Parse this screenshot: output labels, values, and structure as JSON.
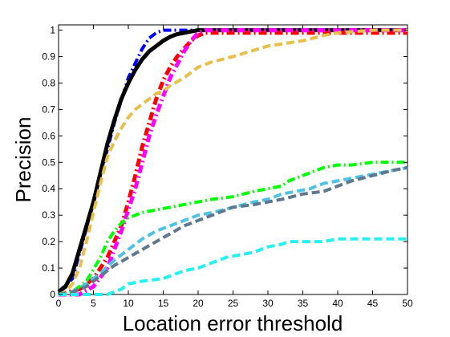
{
  "chart_data": {
    "type": "line",
    "title": "",
    "xlabel": "Location error threshold",
    "ylabel": "Precision",
    "xlim": [
      0,
      50
    ],
    "ylim": [
      0,
      1.02
    ],
    "grid": false,
    "legend": "none",
    "xticks": [
      0,
      5,
      10,
      15,
      20,
      25,
      30,
      35,
      40,
      45,
      50
    ],
    "yticks": [
      0,
      0.1,
      0.2,
      0.3,
      0.4,
      0.5,
      0.6,
      0.7,
      0.8,
      0.9,
      1
    ],
    "ytick_labels": [
      "0",
      "0.1",
      "0.2",
      "0.3",
      "0.4",
      "0.5",
      "0.6",
      "0.7",
      "0.8",
      "0.9",
      "1"
    ],
    "series": [
      {
        "color": "#0000ff",
        "style": "dashdot",
        "width": 4,
        "x": [
          0,
          2,
          4,
          6,
          8,
          10,
          12,
          13,
          14,
          15,
          16,
          17,
          18,
          20,
          50
        ],
        "y": [
          0.01,
          0.06,
          0.25,
          0.45,
          0.65,
          0.82,
          0.93,
          0.97,
          0.99,
          1.0,
          1.0,
          1.0,
          1.0,
          1.0,
          1.0
        ]
      },
      {
        "color": "#000000",
        "style": "solid",
        "width": 5,
        "x": [
          0,
          1,
          2,
          3,
          4,
          5,
          6,
          7,
          8,
          9,
          10,
          11,
          12,
          13,
          14,
          15,
          16,
          17,
          18,
          19,
          20,
          22,
          25,
          30,
          40,
          50
        ],
        "y": [
          0.01,
          0.03,
          0.08,
          0.17,
          0.26,
          0.35,
          0.46,
          0.57,
          0.66,
          0.74,
          0.8,
          0.85,
          0.89,
          0.92,
          0.94,
          0.96,
          0.975,
          0.985,
          0.99,
          0.995,
          1.0,
          1.0,
          1.0,
          1.0,
          1.0,
          1.0
        ]
      },
      {
        "color": "#ff0000",
        "style": "dashdot",
        "width": 5,
        "x": [
          0,
          3,
          5,
          7,
          9,
          10,
          11,
          12,
          13,
          14,
          15,
          16,
          17,
          18,
          19,
          20,
          21,
          22,
          25,
          30,
          40,
          50
        ],
        "y": [
          0,
          0.02,
          0.06,
          0.14,
          0.26,
          0.35,
          0.45,
          0.56,
          0.65,
          0.74,
          0.81,
          0.86,
          0.9,
          0.93,
          0.96,
          0.98,
          0.99,
          0.99,
          0.99,
          0.99,
          0.99,
          0.99
        ]
      },
      {
        "color": "#ff00ff",
        "style": "dashdot",
        "width": 5,
        "x": [
          0,
          3,
          5,
          7,
          9,
          11,
          12,
          13,
          14,
          15,
          16,
          17,
          18,
          19,
          20,
          21,
          22,
          25,
          50
        ],
        "y": [
          0,
          0.0,
          0.03,
          0.1,
          0.24,
          0.4,
          0.5,
          0.6,
          0.68,
          0.75,
          0.82,
          0.87,
          0.92,
          0.96,
          0.99,
          1.0,
          1.0,
          1.0,
          1.0
        ]
      },
      {
        "color": "#e6c04a",
        "style": "dashed",
        "width": 4,
        "x": [
          0,
          1,
          2,
          3,
          4,
          5,
          6,
          7,
          8,
          9,
          10,
          11,
          12,
          13,
          14,
          15,
          16,
          18,
          20,
          22,
          25,
          30,
          35,
          38,
          40,
          45,
          50
        ],
        "y": [
          0,
          0.01,
          0.04,
          0.1,
          0.2,
          0.31,
          0.42,
          0.52,
          0.58,
          0.63,
          0.67,
          0.7,
          0.72,
          0.74,
          0.76,
          0.77,
          0.79,
          0.82,
          0.86,
          0.88,
          0.9,
          0.94,
          0.96,
          0.98,
          0.99,
          1.0,
          1.0
        ]
      },
      {
        "color": "#00ff00",
        "style": "dashdot",
        "width": 4,
        "x": [
          0,
          2,
          4,
          6,
          7,
          8,
          9,
          10,
          11,
          12,
          14,
          16,
          18,
          20,
          22,
          25,
          28,
          30,
          32,
          33,
          35,
          38,
          40,
          42,
          45,
          48,
          50
        ],
        "y": [
          0,
          0.01,
          0.05,
          0.14,
          0.2,
          0.24,
          0.27,
          0.29,
          0.3,
          0.31,
          0.32,
          0.33,
          0.34,
          0.35,
          0.36,
          0.37,
          0.39,
          0.4,
          0.41,
          0.43,
          0.45,
          0.48,
          0.49,
          0.49,
          0.5,
          0.5,
          0.5
        ]
      },
      {
        "color": "#4fc3e3",
        "style": "dashed",
        "width": 4,
        "x": [
          0,
          2,
          4,
          6,
          8,
          10,
          12,
          14,
          16,
          18,
          20,
          22,
          25,
          28,
          30,
          32,
          34,
          36,
          38,
          40,
          42,
          44,
          46,
          48,
          50
        ],
        "y": [
          0,
          0.01,
          0.04,
          0.08,
          0.13,
          0.17,
          0.21,
          0.24,
          0.26,
          0.28,
          0.3,
          0.31,
          0.33,
          0.35,
          0.36,
          0.38,
          0.39,
          0.4,
          0.42,
          0.43,
          0.44,
          0.45,
          0.46,
          0.47,
          0.48
        ]
      },
      {
        "color": "#5f7890",
        "style": "dashed",
        "width": 4,
        "x": [
          0,
          2,
          4,
          6,
          8,
          10,
          12,
          14,
          16,
          18,
          20,
          22,
          25,
          28,
          30,
          32,
          35,
          38,
          40,
          42,
          45,
          48,
          50
        ],
        "y": [
          0,
          0.01,
          0.03,
          0.07,
          0.11,
          0.14,
          0.17,
          0.2,
          0.23,
          0.26,
          0.28,
          0.3,
          0.33,
          0.34,
          0.35,
          0.36,
          0.38,
          0.39,
          0.41,
          0.43,
          0.45,
          0.47,
          0.48
        ]
      },
      {
        "color": "#26f0f0",
        "style": "dashed",
        "width": 4,
        "x": [
          0,
          4,
          7,
          8,
          9,
          10,
          12,
          15,
          17,
          18,
          20,
          22,
          24,
          26,
          28,
          30,
          32,
          33,
          35,
          38,
          40,
          45,
          50
        ],
        "y": [
          0,
          0.0,
          0.0,
          0.01,
          0.02,
          0.04,
          0.05,
          0.06,
          0.08,
          0.09,
          0.1,
          0.12,
          0.14,
          0.15,
          0.16,
          0.18,
          0.19,
          0.2,
          0.2,
          0.2,
          0.21,
          0.21,
          0.21
        ]
      }
    ]
  }
}
